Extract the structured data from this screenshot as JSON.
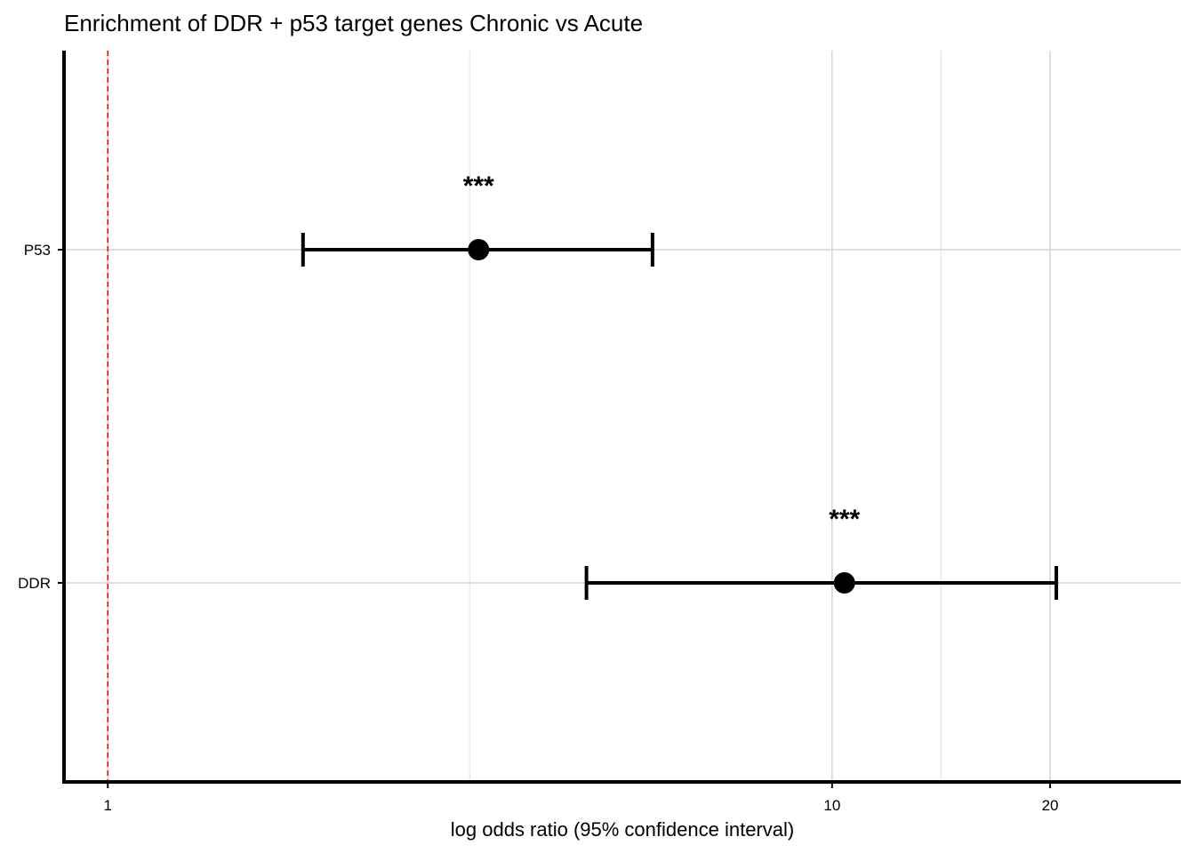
{
  "chart_data": {
    "type": "forest",
    "title": "Enrichment of DDR + p53 target genes Chronic vs Acute",
    "xlabel": "log odds ratio (95% confidence interval)",
    "ylabel": "",
    "x_scale": "log",
    "xlim": [
      0.87,
      30.3
    ],
    "x_major_ticks": [
      1,
      10,
      20
    ],
    "x_minor_gridlines": [
      3.16,
      14.14
    ],
    "categories": [
      "P53",
      "DDR"
    ],
    "points": [
      {
        "category": "P53",
        "estimate": 3.25,
        "ci_low": 1.86,
        "ci_high": 5.65,
        "significance": "***"
      },
      {
        "category": "DDR",
        "estimate": 10.4,
        "ci_low": 4.58,
        "ci_high": 20.4,
        "significance": "***"
      }
    ],
    "reference_line": {
      "x": 1,
      "style": "dashed",
      "color": "#ff0000"
    },
    "grid": true,
    "colors": {
      "points": "#000000",
      "grid": "#d3d3d3",
      "axis": "#000000"
    }
  }
}
